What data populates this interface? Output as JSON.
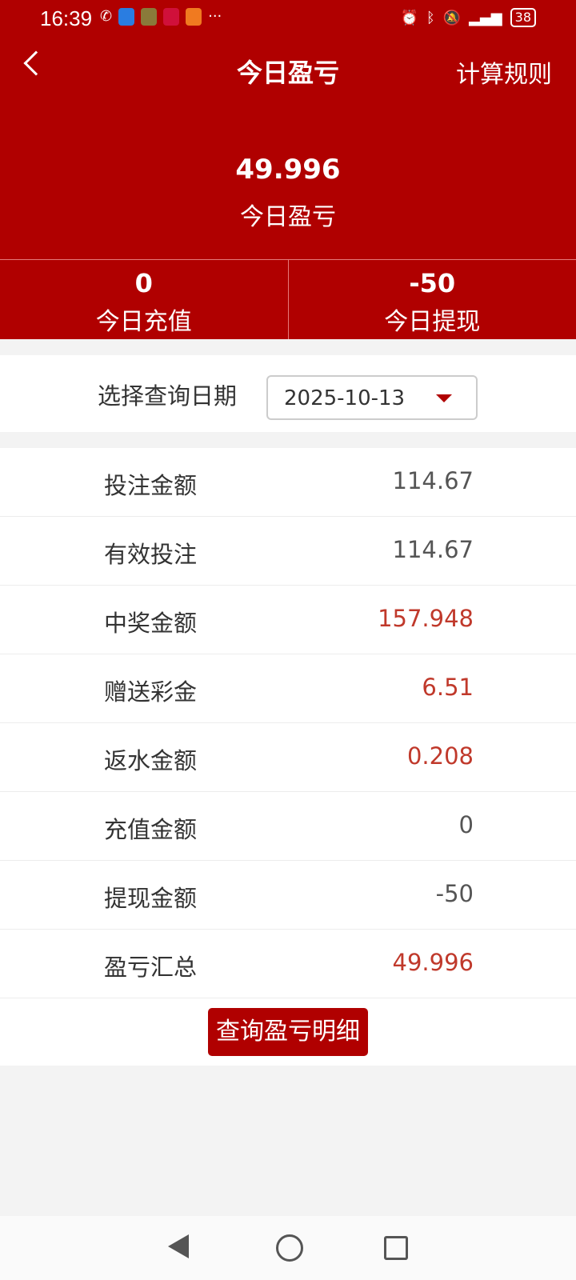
{
  "status_bar": {
    "time": "16:39",
    "more": "···",
    "battery": "38"
  },
  "header": {
    "title": "今日盈亏",
    "rules_label": "计算规则",
    "total_value": "49.996",
    "total_label": "今日盈亏"
  },
  "stats": [
    {
      "value": "0",
      "label": "今日充值"
    },
    {
      "value": "-50",
      "label": "今日提现"
    }
  ],
  "date_filter": {
    "label": "选择查询日期",
    "value": "2025-10-13"
  },
  "rows": [
    {
      "label": "投注金额",
      "value": "114.67",
      "highlight": false
    },
    {
      "label": "有效投注",
      "value": "114.67",
      "highlight": false
    },
    {
      "label": "中奖金额",
      "value": "157.948",
      "highlight": true
    },
    {
      "label": "赠送彩金",
      "value": "6.51",
      "highlight": true
    },
    {
      "label": "返水金额",
      "value": "0.208",
      "highlight": true
    },
    {
      "label": "充值金额",
      "value": "0",
      "highlight": false
    },
    {
      "label": "提现金额",
      "value": "-50",
      "highlight": false
    },
    {
      "label": "盈亏汇总",
      "value": "49.996",
      "highlight": true
    }
  ],
  "query_button": "查询盈亏明细",
  "colors": {
    "primary": "#b00000",
    "highlight": "#c0392b"
  }
}
